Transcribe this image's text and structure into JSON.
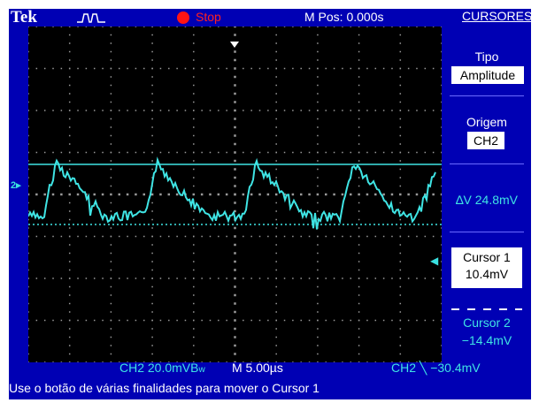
{
  "header": {
    "brand": "Tek",
    "acq_state": "Stop",
    "m_pos": "M Pos: 0.000s",
    "menu_title": "CURSORES"
  },
  "side_menu": {
    "tipo_label": "Tipo",
    "tipo_value": "Amplitude",
    "origem_label": "Origem",
    "origem_value": "CH2",
    "delta_v": "∆V 24.8mV",
    "cursor1_label": "Cursor 1",
    "cursor1_value": "10.4mV",
    "cursor2_label": "Cursor 2",
    "cursor2_value": "−14.4mV"
  },
  "status_bar": {
    "ch_scale": "CH2  20.0mVB",
    "bw_mark": "w",
    "time_scale": "M 5.00µs",
    "trigger": "CH2 ╲ −30.4mV"
  },
  "hint": "Use o botão de várias finalidades para mover o Cursor 1",
  "channel_marker": "2▸",
  "colors": {
    "screen_bg": "#0000b4",
    "trace": "#3fe4e4",
    "stop": "#ff1414"
  }
}
